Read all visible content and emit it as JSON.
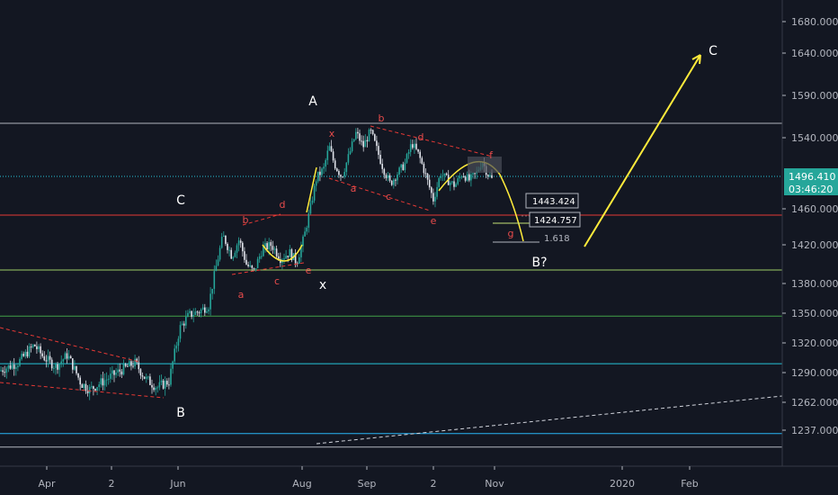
{
  "chart_data": {
    "type": "candlestick",
    "title": "",
    "x_ticks": [
      "Apr",
      "2",
      "Jun",
      "Aug",
      "Sep",
      "2",
      "Nov",
      "2020",
      "Feb"
    ],
    "y_ticks": [
      1680.0,
      1640.0,
      1590.0,
      1540.0,
      1460.0,
      1420.0,
      1380.0,
      1350.0,
      1320.0,
      1290.0,
      1262.0,
      1237.0
    ],
    "ylim": [
      1205,
      1705
    ],
    "current_price": "1496.410",
    "countdown": "03:46:20",
    "horizontal_levels": [
      {
        "price": 1557,
        "color": "#b2b5be"
      },
      {
        "price": 1496.41,
        "color": "#26c6da",
        "dotted": true
      },
      {
        "price": 1453,
        "color": "#e53935"
      },
      {
        "price": 1394,
        "color": "#9ccc65"
      },
      {
        "price": 1347,
        "color": "#43a047"
      },
      {
        "price": 1299,
        "color": "#26c6da"
      },
      {
        "price": 1234,
        "color": "#29b6f6"
      },
      {
        "price": 1222,
        "color": "#b2b5be"
      }
    ],
    "fib_labels": {
      "level_1": "1443.424",
      "level_2": "1424.757",
      "ratio": "1.618"
    },
    "wave_labels": [
      "A",
      "B",
      "C",
      "x",
      "B?",
      "C"
    ],
    "sub_wave_labels": [
      "a",
      "b",
      "c",
      "d",
      "e",
      "x",
      "a",
      "b",
      "c",
      "d",
      "e",
      "f",
      "g"
    ]
  }
}
